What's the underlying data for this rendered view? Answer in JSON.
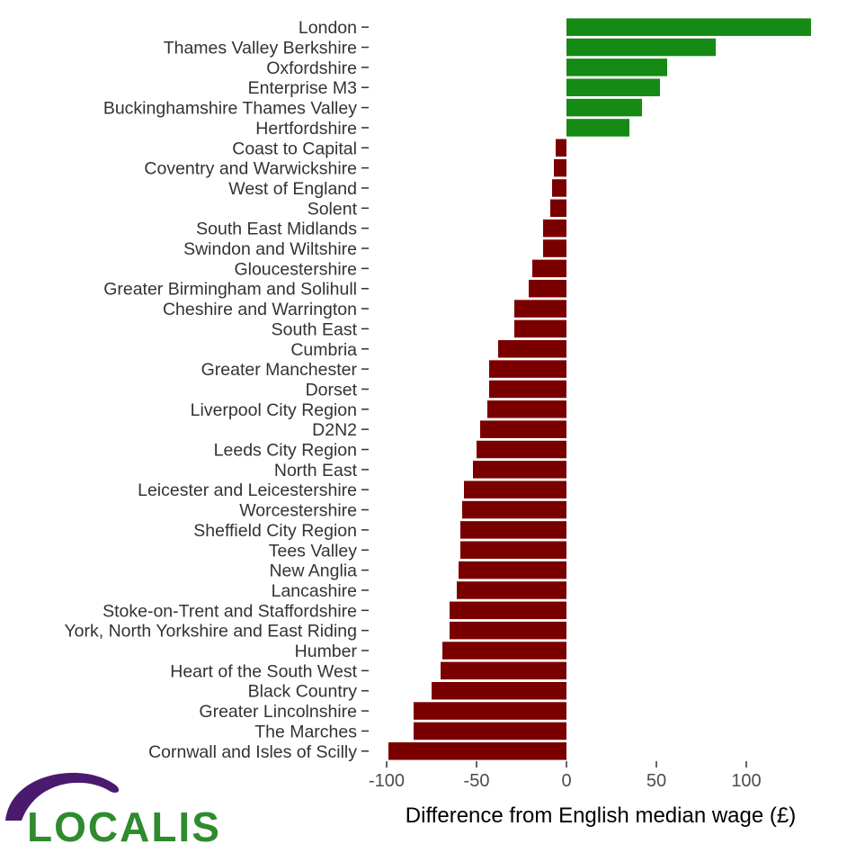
{
  "chart_data": {
    "type": "bar",
    "orientation": "horizontal",
    "categories": [
      "London",
      "Thames Valley Berkshire",
      "Oxfordshire",
      "Enterprise M3",
      "Buckinghamshire Thames Valley",
      "Hertfordshire",
      "Coast to Capital",
      "Coventry and Warwickshire",
      "West of England",
      "Solent",
      "South East Midlands",
      "Swindon and Wiltshire",
      "Gloucestershire",
      "Greater Birmingham and Solihull",
      "Cheshire and Warrington",
      "South East",
      "Cumbria",
      "Greater Manchester",
      "Dorset",
      "Liverpool City Region",
      "D2N2",
      "Leeds City Region",
      "North East",
      "Leicester and Leicestershire",
      "Worcestershire",
      "Sheffield City Region",
      "Tees Valley",
      "New Anglia",
      "Lancashire",
      "Stoke-on-Trent and Staffordshire",
      "York, North Yorkshire and East Riding",
      "Humber",
      "Heart of the South West",
      "Black Country",
      "Greater Lincolnshire",
      "The Marches",
      "Cornwall and Isles of Scilly"
    ],
    "values": [
      136,
      83,
      56,
      52,
      42,
      35,
      -6,
      -7,
      -8,
      -9,
      -13,
      -13,
      -19,
      -21,
      -29,
      -29,
      -38,
      -43,
      -43,
      -44,
      -48,
      -50,
      -52,
      -57,
      -58,
      -59,
      -59,
      -60,
      -61,
      -65,
      -65,
      -69,
      -70,
      -75,
      -85,
      -85,
      -99
    ],
    "positive_color": "#158a15",
    "negative_color": "#7a0000",
    "xlabel": "Difference from English median wage (£)",
    "ylabel": "",
    "title": "",
    "xlim": [
      -100,
      136
    ],
    "xticks": [
      -100,
      -50,
      0,
      50,
      100
    ],
    "grid": false,
    "legend": "none"
  },
  "logo": {
    "text": "LOCALIS",
    "text_color": "#2e8b2e",
    "swoosh_color": "#4a1a6e"
  }
}
